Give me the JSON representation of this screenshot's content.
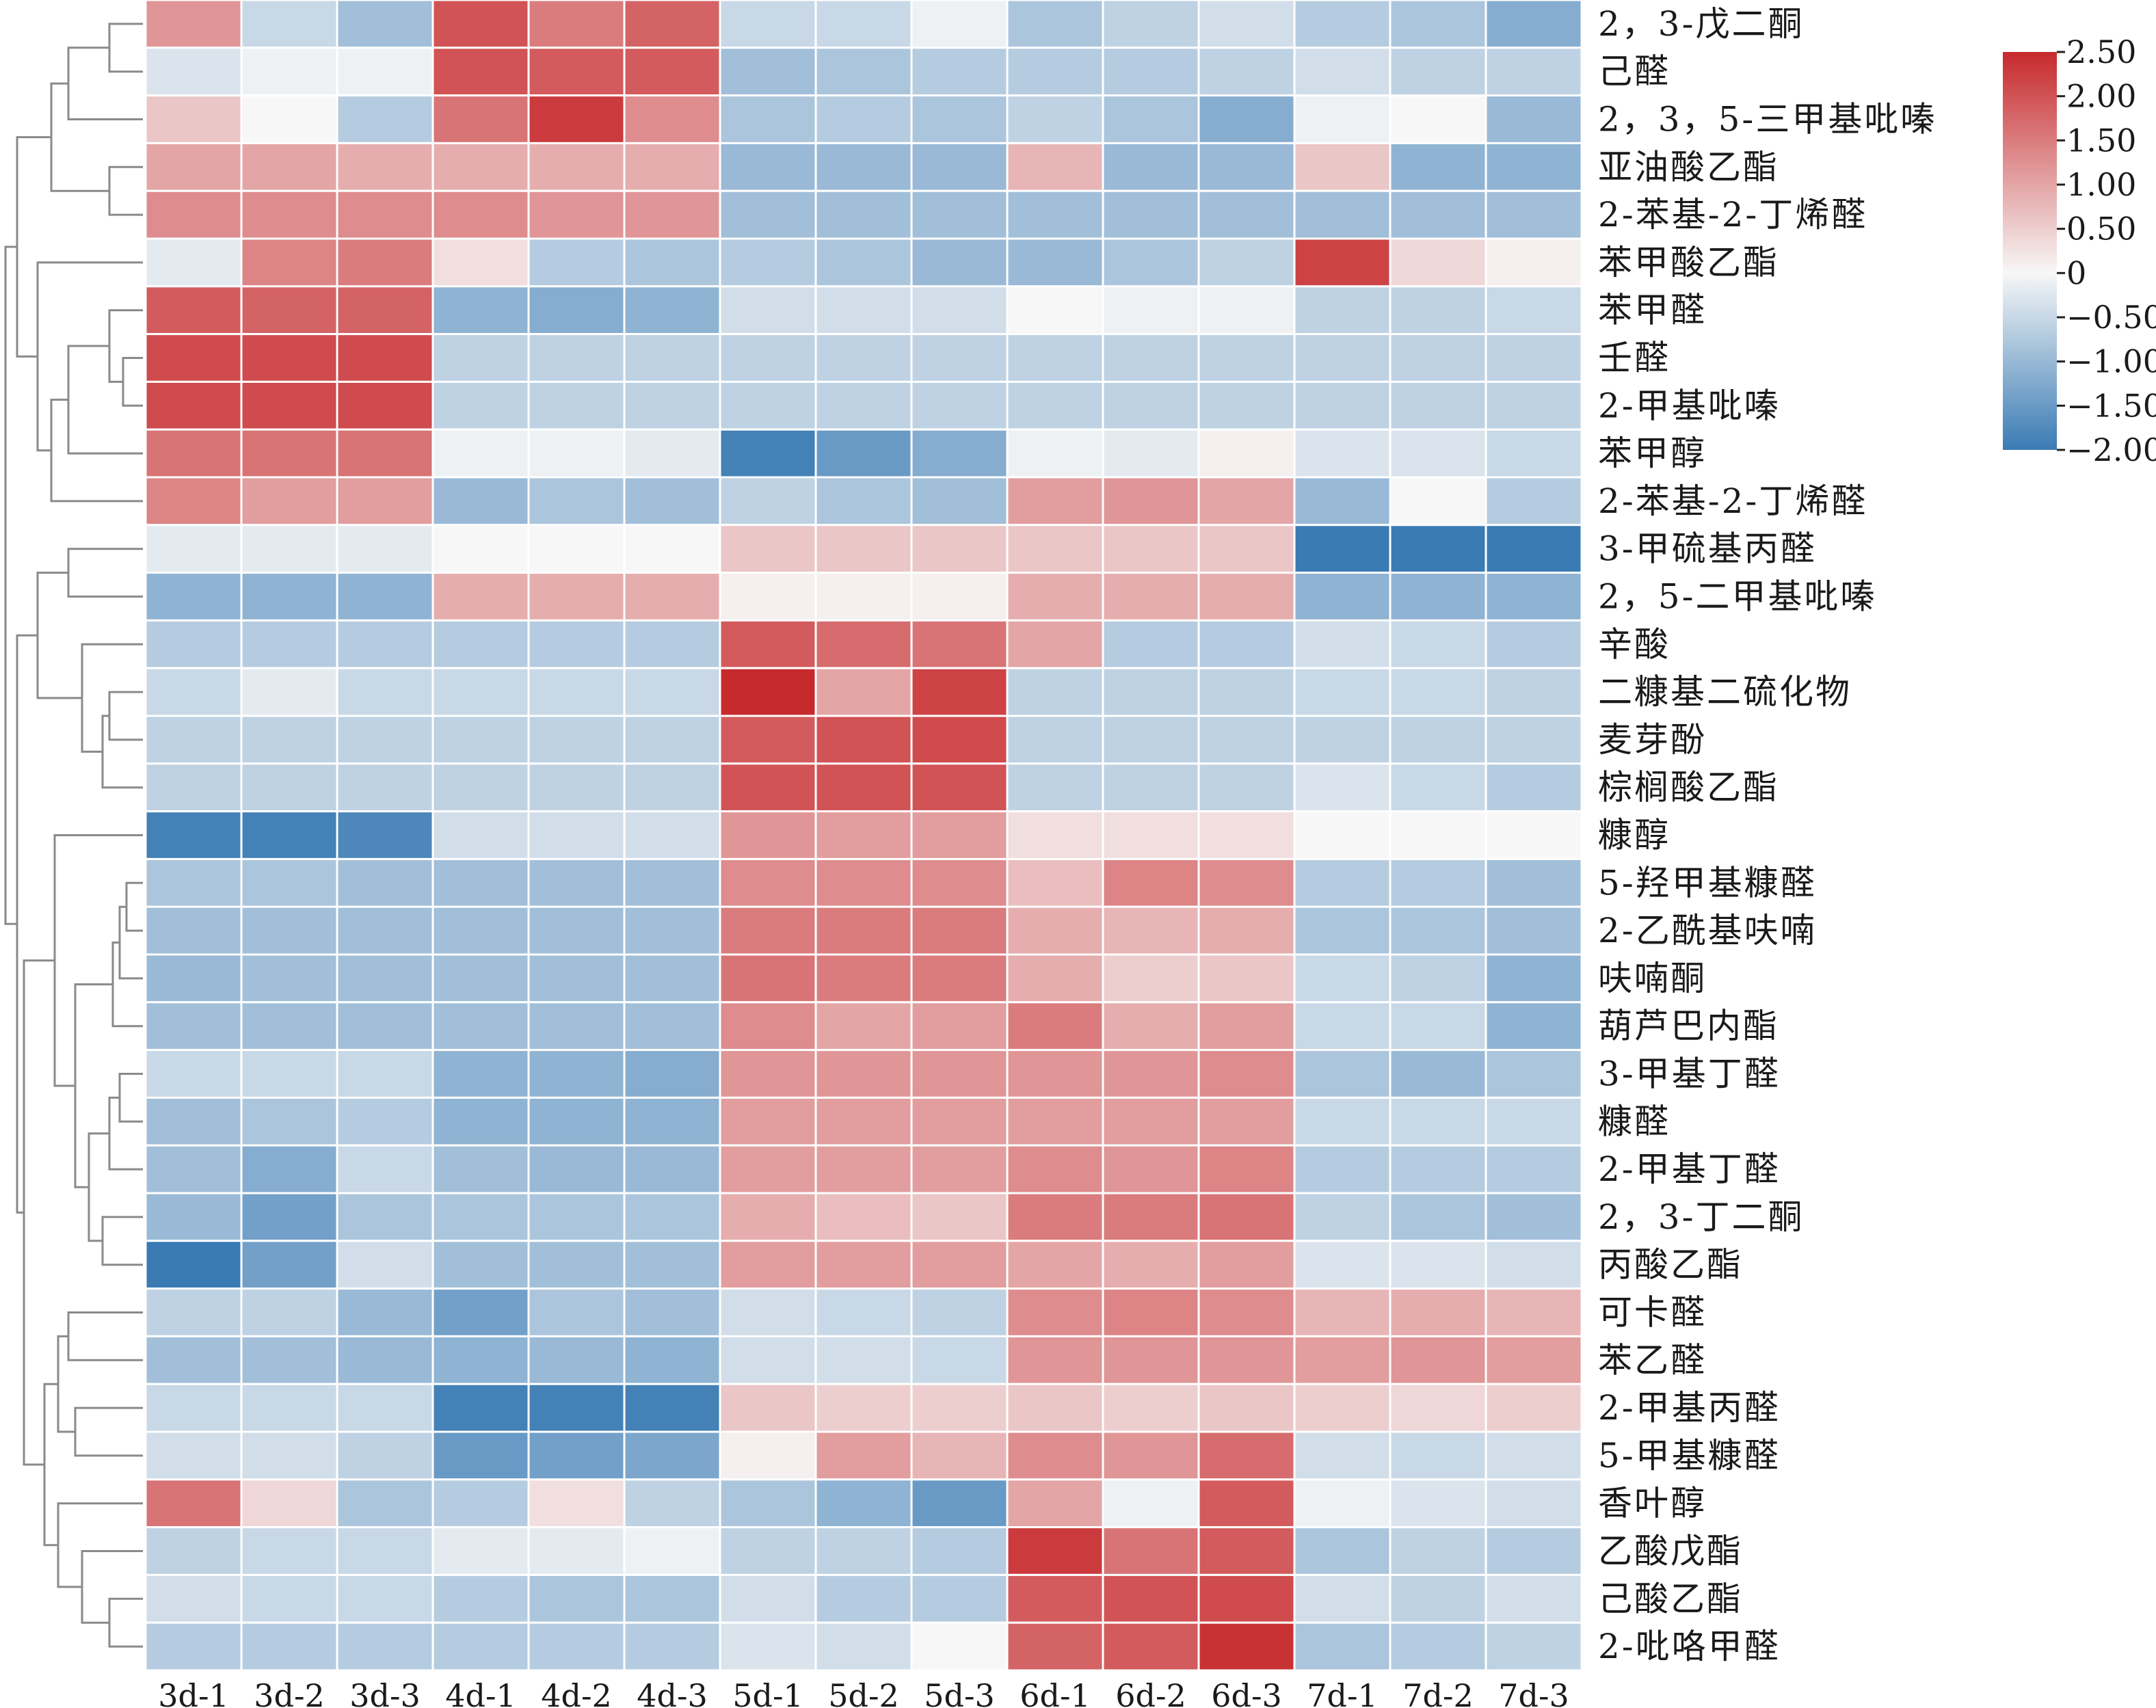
{
  "chart_data": {
    "type": "heatmap",
    "title": "",
    "columns": [
      "3d-1",
      "3d-2",
      "3d-3",
      "4d-1",
      "4d-2",
      "4d-3",
      "5d-1",
      "5d-2",
      "5d-3",
      "6d-1",
      "6d-2",
      "6d-3",
      "7d-1",
      "7d-2",
      "7d-3"
    ],
    "rows": [
      "2，3-戊二酮",
      "己醛",
      "2，3，5-三甲基吡嗪",
      "亚油酸乙酯",
      "2-苯基-2-丁烯醛",
      "苯甲酸乙酯",
      "苯甲醛",
      "壬醛",
      "2-甲基吡嗪",
      "苯甲醇",
      "2-苯基-2-丁烯醛",
      "3-甲硫基丙醛",
      "2，5-二甲基吡嗪",
      "辛酸",
      "二糠基二硫化物",
      "麦芽酚",
      "棕榈酸乙酯",
      "糠醇",
      "5-羟甲基糠醛",
      "2-乙酰基呋喃",
      "呋喃酮",
      "葫芦巴内酯",
      "3-甲基丁醛",
      "糠醛",
      "2-甲基丁醛",
      "2，3-丁二酮",
      "丙酸乙酯",
      "可卡醛",
      "苯乙醛",
      "2-甲基丙醛",
      "5-甲基糠醛",
      "香叶醇",
      "乙酸戊酯",
      "己酸乙酯",
      "2-吡咯甲醛"
    ],
    "values": [
      [
        1.2,
        -0.5,
        -0.9,
        2.0,
        1.5,
        1.8,
        -0.5,
        -0.5,
        -0.1,
        -0.8,
        -0.6,
        -0.4,
        -0.7,
        -0.8,
        -1.2
      ],
      [
        -0.3,
        -0.1,
        -0.1,
        2.0,
        1.9,
        1.9,
        -0.9,
        -0.8,
        -0.7,
        -0.7,
        -0.7,
        -0.6,
        -0.4,
        -0.6,
        -0.6
      ],
      [
        0.6,
        0.0,
        -0.7,
        1.6,
        2.3,
        1.3,
        -0.8,
        -0.7,
        -0.8,
        -0.6,
        -0.8,
        -1.2,
        -0.1,
        0.0,
        -1.0
      ],
      [
        1.0,
        1.0,
        0.9,
        0.9,
        0.9,
        0.9,
        -1.0,
        -1.0,
        -1.0,
        0.8,
        -1.0,
        -1.0,
        0.6,
        -1.1,
        -1.1
      ],
      [
        1.3,
        1.3,
        1.3,
        1.3,
        1.2,
        1.2,
        -0.9,
        -0.9,
        -0.9,
        -0.9,
        -0.9,
        -0.9,
        -0.9,
        -0.9,
        -0.9
      ],
      [
        -0.2,
        1.4,
        1.5,
        0.3,
        -0.7,
        -0.8,
        -0.7,
        -0.8,
        -1.0,
        -1.0,
        -0.8,
        -0.6,
        2.2,
        0.4,
        0.1
      ],
      [
        1.9,
        1.8,
        1.8,
        -1.1,
        -1.2,
        -1.1,
        -0.4,
        -0.4,
        -0.4,
        0.0,
        -0.1,
        -0.1,
        -0.6,
        -0.6,
        -0.5
      ],
      [
        2.1,
        2.1,
        2.1,
        -0.6,
        -0.6,
        -0.6,
        -0.6,
        -0.6,
        -0.6,
        -0.6,
        -0.6,
        -0.6,
        -0.6,
        -0.6,
        -0.6
      ],
      [
        2.1,
        2.1,
        2.1,
        -0.6,
        -0.6,
        -0.6,
        -0.6,
        -0.6,
        -0.6,
        -0.6,
        -0.6,
        -0.6,
        -0.6,
        -0.6,
        -0.6
      ],
      [
        1.6,
        1.6,
        1.6,
        -0.1,
        -0.1,
        -0.2,
        -1.9,
        -1.5,
        -1.2,
        -0.1,
        -0.2,
        0.1,
        -0.3,
        -0.3,
        -0.5
      ],
      [
        1.4,
        1.1,
        1.1,
        -1.0,
        -0.8,
        -0.9,
        -0.6,
        -0.8,
        -0.9,
        1.1,
        1.2,
        1.0,
        -1.0,
        0.0,
        -0.7
      ],
      [
        -0.2,
        -0.2,
        -0.2,
        0.0,
        0.0,
        0.0,
        0.6,
        0.6,
        0.6,
        0.6,
        0.6,
        0.6,
        -2.0,
        -2.0,
        -2.0
      ],
      [
        -1.1,
        -1.1,
        -1.1,
        0.9,
        0.9,
        0.9,
        0.1,
        0.1,
        0.1,
        0.9,
        0.9,
        0.9,
        -1.1,
        -1.1,
        -1.1
      ],
      [
        -0.7,
        -0.7,
        -0.7,
        -0.7,
        -0.7,
        -0.7,
        1.9,
        1.7,
        1.6,
        1.0,
        -0.7,
        -0.7,
        -0.4,
        -0.5,
        -0.7
      ],
      [
        -0.5,
        -0.2,
        -0.5,
        -0.5,
        -0.5,
        -0.5,
        2.5,
        1.0,
        2.2,
        -0.6,
        -0.6,
        -0.6,
        -0.5,
        -0.5,
        -0.6
      ],
      [
        -0.6,
        -0.6,
        -0.6,
        -0.6,
        -0.6,
        -0.6,
        1.9,
        2.0,
        2.1,
        -0.6,
        -0.6,
        -0.6,
        -0.6,
        -0.6,
        -0.6
      ],
      [
        -0.6,
        -0.6,
        -0.6,
        -0.6,
        -0.6,
        -0.6,
        2.0,
        2.0,
        2.0,
        -0.6,
        -0.6,
        -0.6,
        -0.3,
        -0.5,
        -0.7
      ],
      [
        -1.9,
        -1.9,
        -1.8,
        -0.4,
        -0.4,
        -0.4,
        1.2,
        1.1,
        1.1,
        0.3,
        0.3,
        0.3,
        0.0,
        0.0,
        0.0
      ],
      [
        -0.8,
        -0.8,
        -0.9,
        -0.9,
        -0.9,
        -0.9,
        1.3,
        1.3,
        1.3,
        0.7,
        1.4,
        1.3,
        -0.7,
        -0.7,
        -0.9
      ],
      [
        -0.9,
        -0.9,
        -0.9,
        -0.9,
        -0.9,
        -0.9,
        1.5,
        1.5,
        1.5,
        0.9,
        0.8,
        0.9,
        -0.8,
        -0.8,
        -0.9
      ],
      [
        -1.0,
        -0.9,
        -0.9,
        -0.9,
        -0.9,
        -0.9,
        1.6,
        1.5,
        1.5,
        0.9,
        0.5,
        0.6,
        -0.5,
        -0.6,
        -1.1
      ],
      [
        -0.9,
        -0.9,
        -0.9,
        -0.9,
        -0.9,
        -0.9,
        1.3,
        1.0,
        1.1,
        1.5,
        0.9,
        1.1,
        -0.5,
        -0.5,
        -1.1
      ],
      [
        -0.5,
        -0.5,
        -0.5,
        -1.1,
        -1.1,
        -1.2,
        1.2,
        1.2,
        1.2,
        1.2,
        1.2,
        1.3,
        -0.8,
        -1.0,
        -0.8
      ],
      [
        -0.9,
        -0.8,
        -0.7,
        -1.1,
        -1.1,
        -1.1,
        1.1,
        1.1,
        1.1,
        1.1,
        1.1,
        1.1,
        -0.5,
        -0.5,
        -0.5
      ],
      [
        -0.9,
        -1.2,
        -0.5,
        -0.9,
        -1.0,
        -1.0,
        1.1,
        1.1,
        1.1,
        1.3,
        1.2,
        1.4,
        -0.7,
        -0.7,
        -0.7
      ],
      [
        -1.0,
        -1.4,
        -0.8,
        -0.8,
        -0.8,
        -0.8,
        0.9,
        0.7,
        0.6,
        1.5,
        1.5,
        1.6,
        -0.6,
        -0.8,
        -0.9
      ],
      [
        -2.0,
        -1.4,
        -0.4,
        -0.9,
        -0.9,
        -0.9,
        1.1,
        1.1,
        1.1,
        1.0,
        0.9,
        1.1,
        -0.3,
        -0.3,
        -0.4
      ],
      [
        -0.6,
        -0.6,
        -1.0,
        -1.4,
        -0.8,
        -0.9,
        -0.4,
        -0.5,
        -0.6,
        1.3,
        1.4,
        1.3,
        0.8,
        0.9,
        0.8
      ],
      [
        -0.9,
        -0.9,
        -1.0,
        -1.1,
        -1.0,
        -1.1,
        -0.4,
        -0.4,
        -0.5,
        1.2,
        1.2,
        1.2,
        1.1,
        1.2,
        1.1
      ],
      [
        -0.5,
        -0.5,
        -0.5,
        -1.9,
        -1.9,
        -1.9,
        0.6,
        0.5,
        0.5,
        0.6,
        0.5,
        0.6,
        0.5,
        0.4,
        0.5
      ],
      [
        -0.4,
        -0.4,
        -0.6,
        -1.5,
        -1.4,
        -1.3,
        0.1,
        1.1,
        0.8,
        1.3,
        1.2,
        1.7,
        -0.4,
        -0.5,
        -0.4
      ],
      [
        1.6,
        0.4,
        -0.8,
        -0.7,
        0.3,
        -0.6,
        -0.8,
        -1.1,
        -1.5,
        1.0,
        -0.1,
        1.9,
        -0.1,
        -0.3,
        -0.4
      ],
      [
        -0.6,
        -0.5,
        -0.5,
        -0.2,
        -0.2,
        -0.1,
        -0.6,
        -0.6,
        -0.7,
        2.3,
        1.6,
        1.9,
        -0.8,
        -0.6,
        -0.7
      ],
      [
        -0.4,
        -0.5,
        -0.5,
        -0.7,
        -0.8,
        -0.8,
        -0.4,
        -0.7,
        -0.7,
        1.9,
        2.0,
        2.1,
        -0.4,
        -0.6,
        -0.4
      ],
      [
        -0.7,
        -0.7,
        -0.7,
        -0.7,
        -0.7,
        -0.7,
        -0.3,
        -0.4,
        0.0,
        1.8,
        1.9,
        2.4,
        -0.8,
        -0.7,
        -0.6
      ]
    ],
    "colorbar": {
      "min": -2.0,
      "max": 2.5,
      "ticks": [
        "2.50",
        "2.00",
        "1.50",
        "1.00",
        "0.50",
        "0",
        "−0.50",
        "−1.00",
        "−1.50",
        "−2.00"
      ],
      "tick_values": [
        2.5,
        2.0,
        1.5,
        1.0,
        0.5,
        0.0,
        -0.5,
        -1.0,
        -1.5,
        -2.0
      ],
      "colors": {
        "low": "#3a7bb4",
        "mid": "#f7f7f7",
        "high": "#c72a2d"
      }
    },
    "dendrogram": "rows, left side"
  }
}
